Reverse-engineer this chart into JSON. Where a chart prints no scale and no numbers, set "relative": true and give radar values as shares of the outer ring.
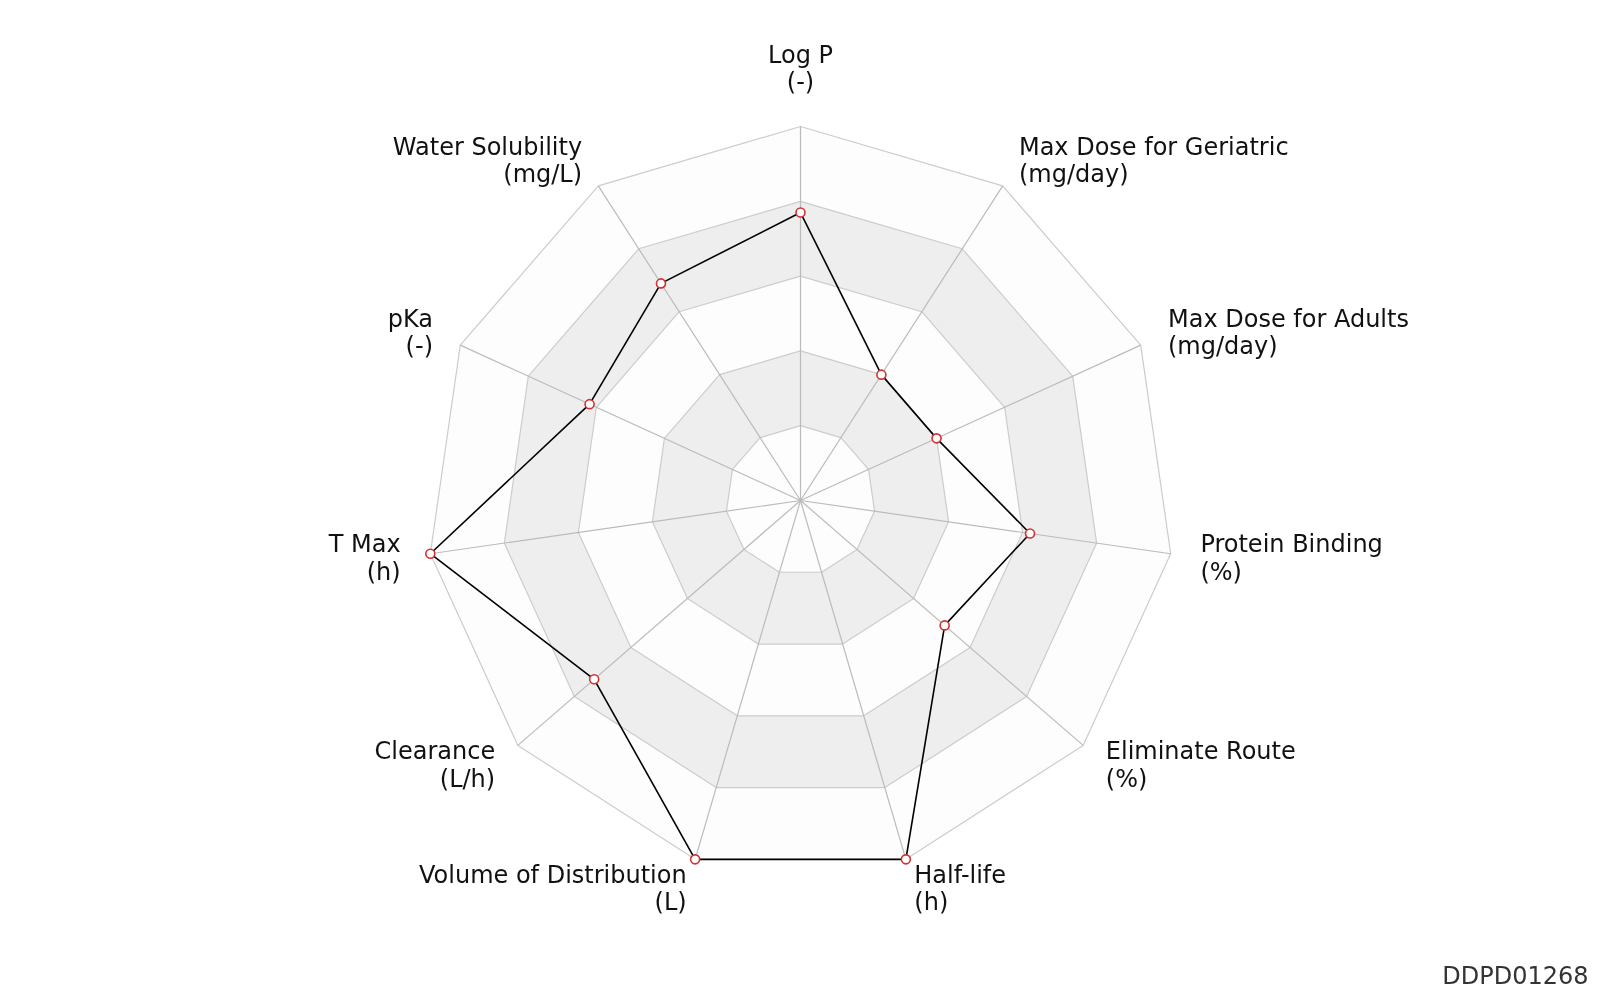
{
  "chart_data": {
    "type": "radar",
    "relative": true,
    "categories": [
      "Log P\n(-)",
      "Max Dose for Geriatric\n(mg/day)",
      "Max Dose for Adults\n(mg/day)",
      "Protein Binding\n(%)",
      "Eliminate Route\n(%)",
      "Half-life\n(h)",
      "Volume of Distribution\n(L)",
      "Clearance\n(L/h)",
      "T Max\n(h)",
      "pKa\n(-)",
      "Water Solubility\n(mg/L)"
    ],
    "series": [
      {
        "color": "#000000",
        "values": [
          0.77,
          0.4,
          0.4,
          0.62,
          0.51,
          1,
          1,
          0.73,
          1,
          0.62,
          0.69
        ]
      }
    ],
    "marker": "circle",
    "grid": true,
    "annotations": [
      "DDPD01268"
    ]
  }
}
